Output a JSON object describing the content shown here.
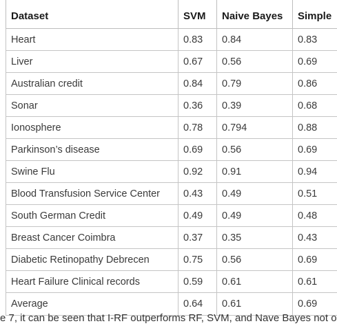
{
  "table": {
    "headers": [
      "Dataset",
      "SVM",
      "Naive Bayes",
      "Simple"
    ],
    "rows": [
      [
        "Heart",
        "0.83",
        "0.84",
        "0.83"
      ],
      [
        "Liver",
        "0.67",
        "0.56",
        "0.69"
      ],
      [
        "Australian credit",
        "0.84",
        "0.79",
        "0.86"
      ],
      [
        "Sonar",
        "0.36",
        "0.39",
        "0.68"
      ],
      [
        "Ionosphere",
        "0.78",
        "0.794",
        "0.88"
      ],
      [
        "Parkinson’s disease",
        "0.69",
        "0.56",
        "0.69"
      ],
      [
        "Swine Flu",
        "0.92",
        "0.91",
        "0.94"
      ],
      [
        "Blood Transfusion Service Center",
        "0.43",
        "0.49",
        "0.51"
      ],
      [
        "South German Credit",
        "0.49",
        "0.49",
        "0.48"
      ],
      [
        "Breast Cancer Coimbra",
        "0.37",
        "0.35",
        "0.43"
      ],
      [
        "Diabetic Retinopathy Debrecen",
        "0.75",
        "0.56",
        "0.69"
      ],
      [
        "Heart Failure Clinical records",
        "0.59",
        "0.61",
        "0.61"
      ],
      [
        "Average",
        "0.64",
        "0.61",
        "0.69"
      ]
    ]
  },
  "caption": "e 7, it can be seen that I-RF outperforms RF, SVM, and Nave Bayes not o"
}
